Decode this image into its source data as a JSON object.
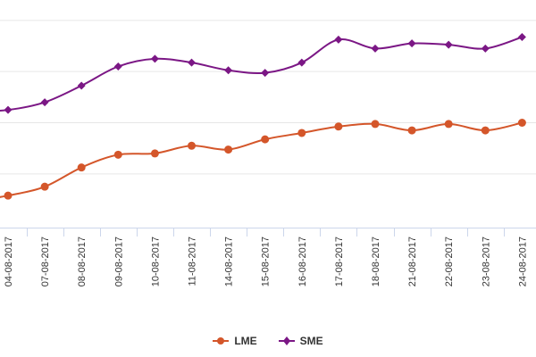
{
  "chart_data": {
    "type": "line",
    "categories": [
      "04-08-2017",
      "07-08-2017",
      "08-08-2017",
      "09-08-2017",
      "10-08-2017",
      "11-08-2017",
      "14-08-2017",
      "15-08-2017",
      "16-08-2017",
      "17-08-2017",
      "18-08-2017",
      "21-08-2017",
      "22-08-2017",
      "23-08-2017",
      "24-08-2017"
    ],
    "series": [
      {
        "name": "LME",
        "color": "#d4562a",
        "marker": "circle",
        "values": [
          16150,
          16500,
          17250,
          17750,
          17800,
          18100,
          17950,
          18350,
          18600,
          18850,
          18950,
          18700,
          18950,
          18700,
          19000
        ]
      },
      {
        "name": "SME",
        "color": "#7b1785",
        "marker": "diamond",
        "values": [
          19500,
          19800,
          20450,
          21200,
          21500,
          21350,
          21050,
          20950,
          21350,
          22250,
          21900,
          22100,
          22050,
          21900,
          22350
        ]
      }
    ],
    "leading_values": {
      "LME": 15920,
      "SME": 19430
    },
    "ylim": [
      14900,
      23100
    ],
    "gridlines_y": [
      17000,
      19000,
      21000,
      23000
    ],
    "grid": true,
    "legend": "bottom-center",
    "title": "",
    "xlabel": "",
    "ylabel": ""
  }
}
